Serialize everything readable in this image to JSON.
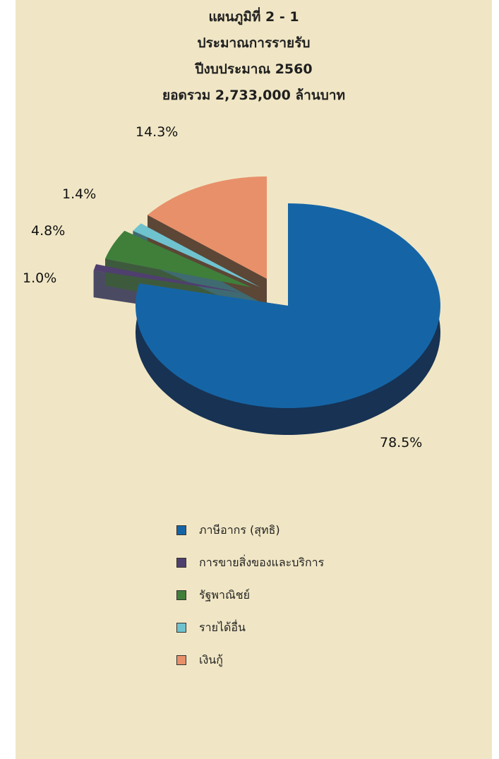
{
  "chart_data": {
    "type": "pie",
    "title": "แผนภูมิที่ 2 - 1",
    "subtitle_lines": [
      "ประมาณการรายรับ",
      "ปีงบประมาณ 2560",
      "ยอดรวม 2,733,000 ล้านบาท"
    ],
    "slices": [
      {
        "name": "ภาษีอากร (สุทธิ)",
        "value": 78.5,
        "label": "78.5%",
        "color": "#1565a6",
        "side_color": "#173253"
      },
      {
        "name": "การขายสิ่งของและบริการ",
        "value": 1.0,
        "label": "1.0%",
        "color": "#4f3f6e",
        "side_color": "#4a4a63"
      },
      {
        "name": "รัฐพาณิชย์",
        "value": 4.8,
        "label": "4.8%",
        "color": "#3f7f3a",
        "side_color": "#3e5a3d"
      },
      {
        "name": "รายได้อื่น",
        "value": 1.4,
        "label": "1.4%",
        "color": "#6fc3cf",
        "side_color": "#3f6a71"
      },
      {
        "name": "เงินกู้",
        "value": 14.3,
        "label": "14.3%",
        "color": "#e8906a",
        "side_color": "#5c4636"
      }
    ],
    "legend_position": "bottom"
  }
}
